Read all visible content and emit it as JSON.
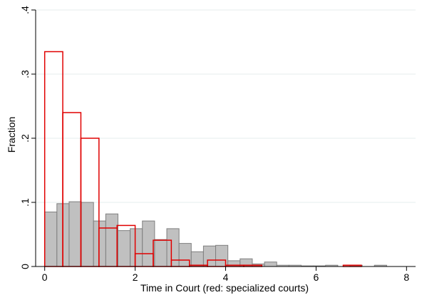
{
  "chart_data": {
    "type": "bar",
    "title": "",
    "xlabel": "Time in Court (red: specialized courts)",
    "ylabel": "Fraction",
    "xlim": [
      -0.2,
      8.2
    ],
    "ylim": [
      0,
      0.4
    ],
    "x_ticks": [
      {
        "value": 0,
        "label": "0"
      },
      {
        "value": 2,
        "label": "2"
      },
      {
        "value": 4,
        "label": "4"
      },
      {
        "value": 6,
        "label": "6"
      },
      {
        "value": 8,
        "label": "8"
      }
    ],
    "y_ticks": [
      {
        "value": 0,
        "label": "0"
      },
      {
        "value": 0.1,
        "label": ".1"
      },
      {
        "value": 0.2,
        "label": ".2"
      },
      {
        "value": 0.3,
        "label": ".3"
      },
      {
        "value": 0.4,
        "label": ".4"
      }
    ],
    "grid": true,
    "series": [
      {
        "style": "filled",
        "color": "#c0c0c0",
        "edge_color": "#7f7f7f",
        "bin_width": 0.27,
        "bins": [
          {
            "x": 0.0,
            "y": 0.085
          },
          {
            "x": 0.27,
            "y": 0.098
          },
          {
            "x": 0.54,
            "y": 0.101
          },
          {
            "x": 0.81,
            "y": 0.1
          },
          {
            "x": 1.08,
            "y": 0.071
          },
          {
            "x": 1.35,
            "y": 0.082
          },
          {
            "x": 1.62,
            "y": 0.056
          },
          {
            "x": 1.89,
            "y": 0.059
          },
          {
            "x": 2.16,
            "y": 0.071
          },
          {
            "x": 2.43,
            "y": 0.042
          },
          {
            "x": 2.7,
            "y": 0.059
          },
          {
            "x": 2.97,
            "y": 0.036
          },
          {
            "x": 3.24,
            "y": 0.023
          },
          {
            "x": 3.51,
            "y": 0.032
          },
          {
            "x": 3.78,
            "y": 0.033
          },
          {
            "x": 4.05,
            "y": 0.009
          },
          {
            "x": 4.32,
            "y": 0.012
          },
          {
            "x": 4.59,
            "y": 0.004
          },
          {
            "x": 4.86,
            "y": 0.007
          },
          {
            "x": 5.13,
            "y": 0.002
          },
          {
            "x": 5.4,
            "y": 0.002
          },
          {
            "x": 5.67,
            "y": 0.001
          },
          {
            "x": 5.94,
            "y": 0.001
          },
          {
            "x": 6.21,
            "y": 0.002
          },
          {
            "x": 6.48,
            "y": 0.0
          },
          {
            "x": 6.75,
            "y": 0.002
          },
          {
            "x": 7.02,
            "y": 0.0
          },
          {
            "x": 7.29,
            "y": 0.002
          }
        ]
      },
      {
        "style": "outline",
        "color": "#e00000",
        "bin_width": 0.4,
        "bins": [
          {
            "x": 0.0,
            "y": 0.335
          },
          {
            "x": 0.4,
            "y": 0.24
          },
          {
            "x": 0.8,
            "y": 0.2
          },
          {
            "x": 1.2,
            "y": 0.06
          },
          {
            "x": 1.6,
            "y": 0.064
          },
          {
            "x": 2.0,
            "y": 0.02
          },
          {
            "x": 2.4,
            "y": 0.041
          },
          {
            "x": 2.8,
            "y": 0.01
          },
          {
            "x": 3.2,
            "y": 0.002
          },
          {
            "x": 3.6,
            "y": 0.01
          },
          {
            "x": 4.0,
            "y": 0.002
          },
          {
            "x": 4.4,
            "y": 0.002
          },
          {
            "x": 6.6,
            "y": 0.002
          }
        ]
      }
    ]
  }
}
